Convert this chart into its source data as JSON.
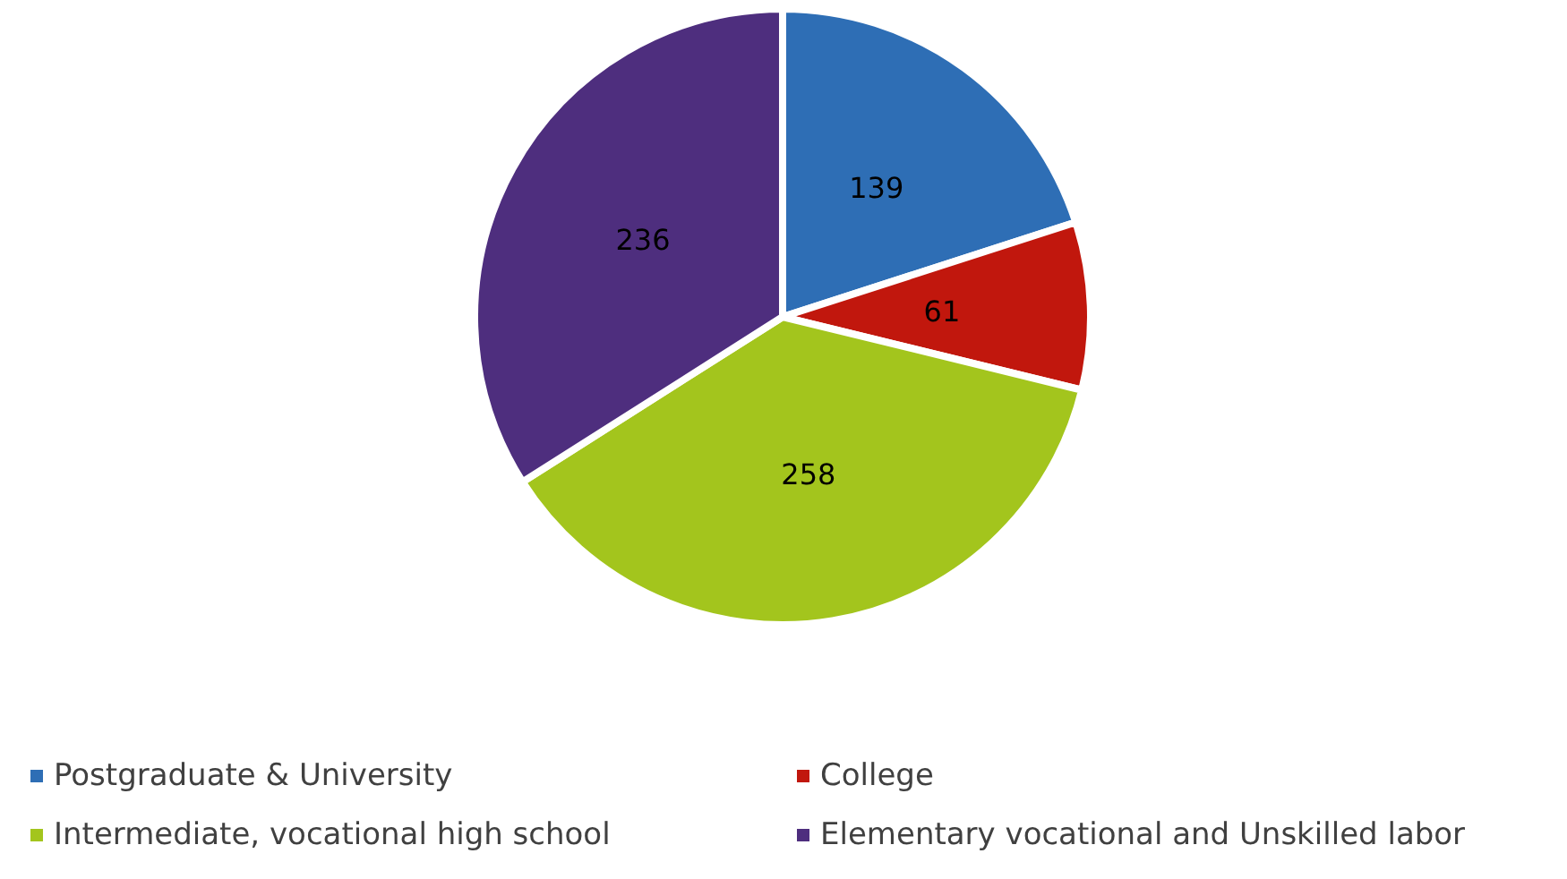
{
  "chart_data": {
    "type": "pie",
    "categories": [
      "Postgraduate & University",
      "College",
      "Intermediate, vocational high school",
      "Elementary vocational and Unskilled labor"
    ],
    "values": [
      139,
      61,
      258,
      236
    ],
    "colors": [
      "#2e6eb5",
      "#c1170d",
      "#a3c51d",
      "#4e2e7e"
    ],
    "data_labels": true,
    "legend": "bottom"
  }
}
